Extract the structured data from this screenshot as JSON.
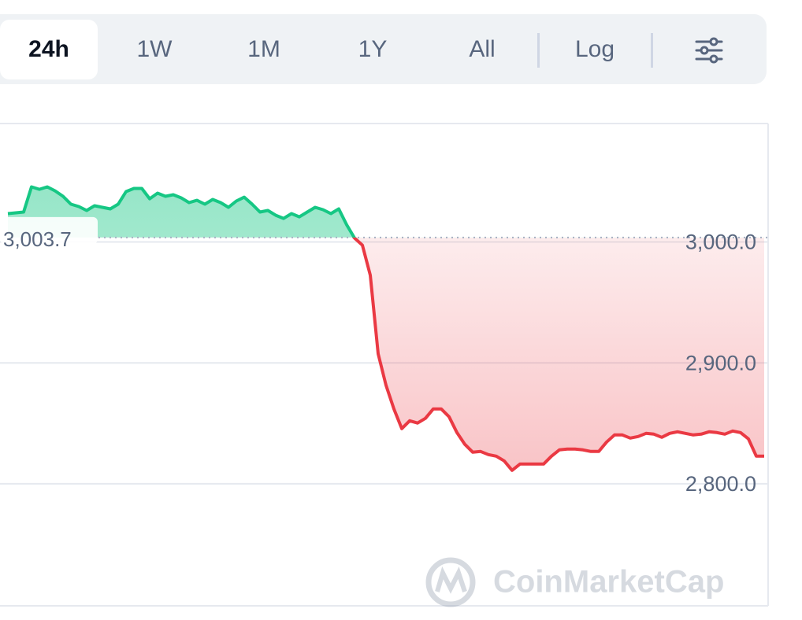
{
  "tabs": [
    "24h",
    "1W",
    "1M",
    "1Y",
    "All",
    "Log"
  ],
  "chart_data": {
    "type": "line",
    "values": [
      3023.5,
      3024.1,
      3024.8,
      3045.6,
      3043.6,
      3045.6,
      3042.3,
      3037.8,
      3031.3,
      3029.3,
      3026.1,
      3030.0,
      3028.7,
      3027.4,
      3031.3,
      3041.7,
      3044.3,
      3044.3,
      3035.8,
      3040.4,
      3037.8,
      3039.1,
      3036.5,
      3032.6,
      3034.5,
      3031.3,
      3035.2,
      3032.6,
      3028.7,
      3033.9,
      3037.1,
      3031.3,
      3024.8,
      3026.1,
      3022.1,
      3019.5,
      3023.5,
      3020.8,
      3024.8,
      3028.7,
      3026.7,
      3023.5,
      3027.4,
      3014.3,
      3003.3,
      2997.4,
      2972.6,
      2907.5,
      2881.4,
      2861.9,
      2845.6,
      2852.1,
      2850.2,
      2854.1,
      2861.9,
      2861.9,
      2855.4,
      2842.3,
      2832.6,
      2826.1,
      2826.7,
      2824.1,
      2822.8,
      2818.9,
      2811.1,
      2816.3,
      2816.3,
      2816.3,
      2816.3,
      2822.8,
      2828.0,
      2828.7,
      2828.7,
      2828.0,
      2826.7,
      2826.7,
      2834.5,
      2840.4,
      2840.4,
      2837.8,
      2839.1,
      2841.7,
      2841.0,
      2838.4,
      2841.7,
      2843.0,
      2841.7,
      2840.4,
      2841.0,
      2843.0,
      2842.3,
      2841.0,
      2843.6,
      2842.3,
      2837.1,
      2822.8,
      2822.8
    ],
    "baseline": {
      "value": 3003.7,
      "label": "3,003.7"
    },
    "up_color": "#16c784",
    "down_color": "#ea3943",
    "ylim": [
      2699,
      3098
    ],
    "yticks": [
      {
        "value": 2800,
        "label": "2,800.0"
      },
      {
        "value": 2900,
        "label": "2,900.0"
      },
      {
        "value": 3000,
        "label": "3,000.0"
      }
    ],
    "grid": true,
    "watermark": "CoinMarketCap"
  }
}
